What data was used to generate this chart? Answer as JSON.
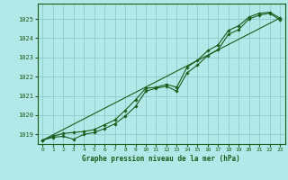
{
  "title": "",
  "xlabel": "Graphe pression niveau de la mer (hPa)",
  "background_color": "#b3e8e8",
  "grid_color": "#88cccc",
  "line_color": "#1a5c1a",
  "marker_color": "#1a5c1a",
  "ylim": [
    1018.5,
    1025.8
  ],
  "xlim": [
    -0.5,
    23.5
  ],
  "yticks": [
    1019,
    1020,
    1021,
    1022,
    1023,
    1024,
    1025
  ],
  "xticks": [
    0,
    1,
    2,
    3,
    4,
    5,
    6,
    7,
    8,
    9,
    10,
    11,
    12,
    13,
    14,
    15,
    16,
    17,
    18,
    19,
    20,
    21,
    22,
    23
  ],
  "series1_x": [
    0,
    1,
    2,
    3,
    4,
    5,
    6,
    7,
    8,
    9,
    10,
    11,
    12,
    13,
    14,
    15,
    16,
    17,
    18,
    19,
    20,
    21,
    22,
    23
  ],
  "series1_y": [
    1018.7,
    1018.85,
    1018.9,
    1018.75,
    1019.0,
    1019.1,
    1019.3,
    1019.55,
    1019.95,
    1020.45,
    1021.25,
    1021.4,
    1021.5,
    1021.25,
    1022.2,
    1022.6,
    1023.1,
    1023.4,
    1024.2,
    1024.45,
    1025.0,
    1025.2,
    1025.3,
    1024.95
  ],
  "series2_x": [
    0,
    1,
    2,
    3,
    4,
    5,
    6,
    7,
    8,
    9,
    10,
    11,
    12,
    13,
    14,
    15,
    16,
    17,
    18,
    19,
    20,
    21,
    22,
    23
  ],
  "series2_y": [
    1018.7,
    1018.9,
    1019.05,
    1019.1,
    1019.15,
    1019.25,
    1019.5,
    1019.75,
    1020.25,
    1020.8,
    1021.4,
    1021.45,
    1021.6,
    1021.45,
    1022.5,
    1022.85,
    1023.35,
    1023.65,
    1024.4,
    1024.65,
    1025.1,
    1025.3,
    1025.35,
    1025.05
  ],
  "ref_line_x": [
    0,
    23
  ],
  "ref_line_y": [
    1018.7,
    1025.05
  ]
}
